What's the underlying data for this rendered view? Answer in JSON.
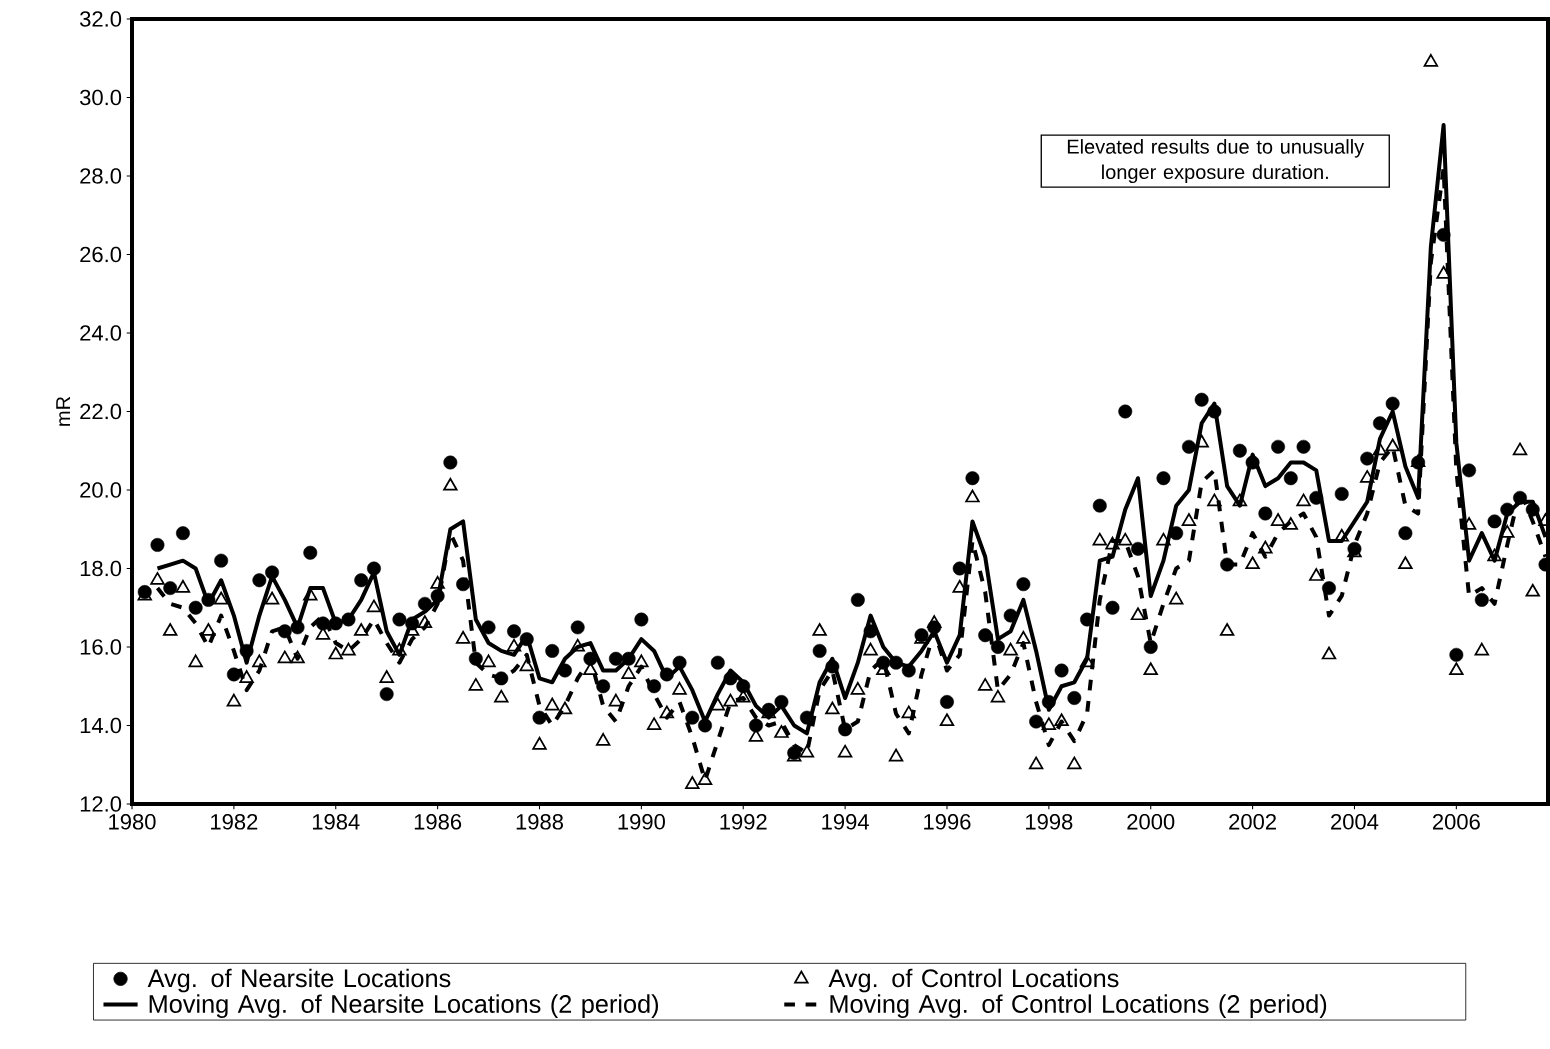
{
  "chart_data": {
    "type": "scatter",
    "ylabel": "mR",
    "annotations": [
      "Elevated results due to unusually longer exposure duration."
    ],
    "xlim": [
      1980,
      2007.8
    ],
    "xticks": [
      1980,
      1982,
      1984,
      1986,
      1988,
      1990,
      1992,
      1994,
      1996,
      1998,
      2000,
      2002,
      2004,
      2006
    ],
    "ylim": [
      12,
      32
    ],
    "yticks": [
      {
        "value": 12,
        "label": "12.0"
      },
      {
        "value": 14,
        "label": "14.0"
      },
      {
        "value": 16,
        "label": "16.0"
      },
      {
        "value": 18,
        "label": "18.0"
      },
      {
        "value": 20,
        "label": "20.0"
      },
      {
        "value": 22,
        "label": "22.0"
      },
      {
        "value": 24,
        "label": "24.0"
      },
      {
        "value": 26,
        "label": "26.0"
      },
      {
        "value": 28,
        "label": "28.0"
      },
      {
        "value": 30,
        "label": "30.0"
      },
      {
        "value": 32,
        "label": "32.0"
      }
    ],
    "legend": "bottom",
    "x": [
      1980.25,
      1980.5,
      1980.75,
      1981,
      1981.25,
      1981.5,
      1981.75,
      1982,
      1982.25,
      1982.5,
      1982.75,
      1983,
      1983.25,
      1983.5,
      1983.75,
      1984,
      1984.25,
      1984.5,
      1984.75,
      1985,
      1985.25,
      1985.5,
      1985.75,
      1986,
      1986.25,
      1986.5,
      1986.75,
      1987,
      1987.25,
      1987.5,
      1987.75,
      1988,
      1988.25,
      1988.5,
      1988.75,
      1989,
      1989.25,
      1989.5,
      1989.75,
      1990,
      1990.25,
      1990.5,
      1990.75,
      1991,
      1991.25,
      1991.5,
      1991.75,
      1992,
      1992.25,
      1992.5,
      1992.75,
      1993,
      1993.25,
      1993.5,
      1993.75,
      1994,
      1994.25,
      1994.5,
      1994.75,
      1995,
      1995.25,
      1995.5,
      1995.75,
      1996,
      1996.25,
      1996.5,
      1996.75,
      1997,
      1997.25,
      1997.5,
      1997.75,
      1998,
      1998.25,
      1998.5,
      1998.75,
      1999,
      1999.25,
      1999.5,
      1999.75,
      2000,
      2000.25,
      2000.5,
      2000.75,
      2001,
      2001.25,
      2001.5,
      2001.75,
      2002,
      2002.25,
      2002.5,
      2002.75,
      2003,
      2003.25,
      2003.5,
      2003.75,
      2004,
      2004.25,
      2004.5,
      2004.75,
      2005,
      2005.25,
      2005.5,
      2005.75,
      2006,
      2006.25,
      2006.5,
      2006.75,
      2007,
      2007.25,
      2007.5,
      2007.75
    ],
    "series": [
      {
        "name": "Avg. of Nearsite Locations",
        "marker": "circle",
        "color": "#000000",
        "values": [
          17.4,
          18.6,
          17.5,
          18.9,
          17.0,
          17.2,
          18.2,
          15.3,
          15.9,
          17.7,
          17.9,
          16.4,
          16.5,
          18.4,
          16.6,
          16.6,
          16.7,
          17.7,
          18.0,
          14.8,
          16.7,
          16.6,
          17.1,
          17.3,
          20.7,
          17.6,
          15.7,
          16.5,
          15.2,
          16.4,
          16.2,
          14.2,
          15.9,
          15.4,
          16.5,
          15.7,
          15.0,
          15.7,
          15.7,
          16.7,
          15.0,
          15.3,
          15.6,
          14.2,
          14.0,
          15.6,
          15.2,
          15.0,
          14.0,
          14.4,
          14.6,
          13.3,
          14.2,
          15.9,
          15.5,
          13.9,
          17.2,
          16.4,
          15.6,
          15.6,
          15.4,
          16.3,
          16.5,
          14.6,
          18.0,
          20.3,
          16.3,
          16.0,
          16.8,
          17.6,
          14.1,
          14.6,
          15.4,
          14.7,
          16.7,
          19.6,
          17.0,
          22.0,
          18.5,
          16.0,
          20.3,
          18.9,
          21.1,
          22.3,
          22.0,
          18.1,
          21.0,
          20.7,
          19.4,
          21.1,
          20.3,
          21.1,
          19.8,
          17.5,
          19.9,
          18.5,
          20.8,
          21.7,
          22.2,
          18.9,
          20.7,
          null,
          26.5,
          15.8,
          20.5,
          17.2,
          19.2,
          19.5,
          19.8,
          19.5,
          18.1
        ]
      },
      {
        "name": "Avg. of Control Locations",
        "marker": "triangle",
        "color": "#000000",
        "values": [
          17.3,
          17.7,
          16.4,
          17.5,
          15.6,
          16.4,
          17.2,
          14.6,
          15.2,
          15.6,
          17.2,
          15.7,
          15.7,
          17.3,
          16.3,
          15.8,
          15.9,
          16.4,
          17.0,
          15.2,
          15.9,
          16.4,
          16.6,
          17.6,
          20.1,
          16.2,
          15.0,
          15.6,
          14.7,
          16.0,
          15.5,
          13.5,
          14.5,
          14.4,
          16.0,
          15.4,
          13.6,
          14.6,
          15.3,
          15.6,
          14.0,
          14.3,
          14.9,
          12.5,
          12.6,
          14.5,
          14.6,
          14.7,
          13.7,
          14.3,
          13.8,
          13.2,
          13.3,
          16.4,
          14.4,
          13.3,
          14.9,
          15.9,
          15.4,
          13.2,
          14.3,
          16.2,
          16.6,
          14.1,
          17.5,
          19.8,
          15.0,
          14.7,
          15.9,
          16.2,
          13.0,
          14.0,
          14.1,
          13.0,
          15.6,
          18.7,
          18.6,
          18.7,
          16.8,
          15.4,
          18.7,
          17.2,
          19.2,
          21.2,
          19.7,
          16.4,
          19.7,
          18.1,
          18.5,
          19.2,
          19.1,
          19.7,
          17.8,
          15.8,
          18.8,
          18.4,
          20.3,
          21.0,
          21.1,
          18.1,
          20.7,
          30.9,
          25.5,
          15.4,
          19.1,
          15.9,
          18.3,
          18.9,
          21.0,
          17.4,
          19.2
        ]
      },
      {
        "name": "Moving Avg. of Nearsite Locations (2 period)",
        "type": "line",
        "marker": "none",
        "line_style": "solid",
        "color": "#000000",
        "values": [
          null,
          18.0,
          18.1,
          18.2,
          18.0,
          17.1,
          17.7,
          16.8,
          15.6,
          16.8,
          17.8,
          17.2,
          16.5,
          17.5,
          17.5,
          16.6,
          16.7,
          17.2,
          17.9,
          16.4,
          15.8,
          16.7,
          16.9,
          17.2,
          19.0,
          19.2,
          16.7,
          16.1,
          15.9,
          15.8,
          16.3,
          15.2,
          15.1,
          15.7,
          16.0,
          16.1,
          15.4,
          15.4,
          15.7,
          16.2,
          15.9,
          15.2,
          15.5,
          14.9,
          14.1,
          14.8,
          15.4,
          15.1,
          14.5,
          14.2,
          14.5,
          14.0,
          13.8,
          15.1,
          15.7,
          14.7,
          15.6,
          16.8,
          16.0,
          15.6,
          15.5,
          15.9,
          16.4,
          15.6,
          16.3,
          19.2,
          18.3,
          16.2,
          16.4,
          17.2,
          15.9,
          14.4,
          15.0,
          15.1,
          15.7,
          18.2,
          18.3,
          19.5,
          20.3,
          17.3,
          18.2,
          19.6,
          20.0,
          21.7,
          22.2,
          20.1,
          19.6,
          20.9,
          20.1,
          20.3,
          20.7,
          20.7,
          20.5,
          18.7,
          18.7,
          19.2,
          19.7,
          21.3,
          22.0,
          20.6,
          19.8,
          26.2,
          29.3,
          21.2,
          18.2,
          18.9,
          18.2,
          19.4,
          19.7,
          19.7,
          18.8
        ]
      },
      {
        "name": "Moving Avg. of Control Locations (2 period)",
        "type": "line",
        "marker": "none",
        "line_style": "dashed",
        "color": "#000000",
        "values": [
          null,
          17.5,
          17.1,
          17.0,
          16.6,
          16.0,
          16.8,
          15.9,
          14.9,
          15.4,
          16.4,
          16.5,
          15.7,
          16.5,
          16.8,
          16.1,
          15.9,
          16.2,
          16.7,
          16.1,
          15.6,
          16.2,
          16.5,
          17.1,
          18.9,
          18.2,
          15.6,
          15.3,
          15.2,
          15.4,
          15.8,
          14.5,
          14.0,
          14.5,
          15.2,
          15.7,
          14.5,
          14.1,
          15.0,
          15.5,
          14.8,
          14.2,
          14.6,
          13.7,
          12.6,
          13.6,
          14.6,
          14.7,
          14.2,
          14.0,
          14.1,
          13.5,
          13.3,
          14.9,
          15.4,
          13.9,
          14.1,
          15.4,
          15.7,
          14.3,
          13.8,
          15.3,
          16.4,
          15.4,
          15.8,
          18.7,
          17.4,
          14.9,
          15.3,
          16.1,
          14.6,
          13.5,
          14.1,
          13.6,
          14.3,
          17.2,
          18.7,
          18.7,
          17.8,
          16.1,
          17.1,
          18.0,
          18.2,
          20.2,
          20.5,
          18.1,
          18.1,
          18.9,
          18.3,
          18.9,
          19.2,
          19.4,
          18.8,
          16.8,
          17.3,
          18.6,
          19.4,
          20.7,
          21.1,
          19.6,
          19.4,
          25.8,
          28.2,
          20.5,
          17.3,
          17.5,
          17.1,
          18.6,
          20.0,
          19.2,
          18.3
        ]
      }
    ]
  }
}
